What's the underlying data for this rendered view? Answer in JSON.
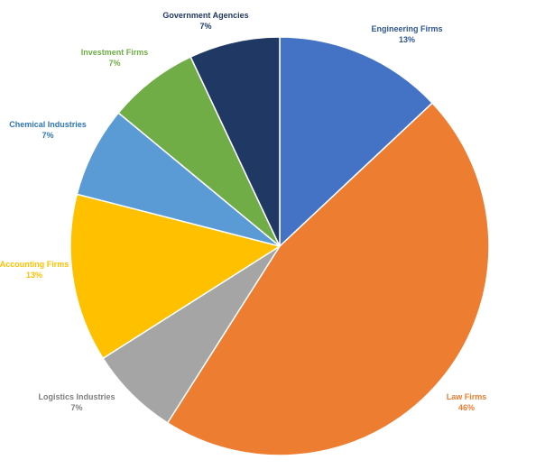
{
  "chart_data": {
    "type": "pie",
    "title": "",
    "start": "top",
    "direction": "clockwise",
    "slices": [
      {
        "label": "Engineering Firms",
        "value": 13,
        "value_label": "13%",
        "color": "#4472C4",
        "text_color": "#2F5597"
      },
      {
        "label": "Law Firms",
        "value": 46,
        "value_label": "46%",
        "color": "#ED7D31",
        "text_color": "#ED7D31"
      },
      {
        "label": "Logistics Industries",
        "value": 7,
        "value_label": "7%",
        "color": "#A5A5A5",
        "text_color": "#7F7F7F"
      },
      {
        "label": "Accounting Firms",
        "value": 13,
        "value_label": "13%",
        "color": "#FFC000",
        "text_color": "#FFC000"
      },
      {
        "label": "Chemical Industries",
        "value": 7,
        "value_label": "7%",
        "color": "#5B9BD5",
        "text_color": "#2E75B6"
      },
      {
        "label": "Investment Firms",
        "value": 7,
        "value_label": "7%",
        "color": "#70AD47",
        "text_color": "#70AD47"
      },
      {
        "label": "Government Agencies",
        "value": 7,
        "value_label": "7%",
        "color": "#203864",
        "text_color": "#203864"
      }
    ]
  }
}
